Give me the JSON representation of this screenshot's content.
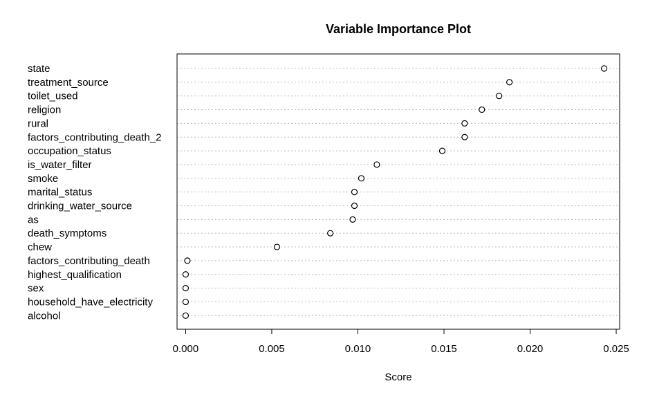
{
  "chart_data": {
    "type": "scatter",
    "title": "Variable Importance Plot",
    "xlabel": "Score",
    "ylabel": "",
    "xlim": [
      -0.0005,
      0.0252
    ],
    "xticks": [
      0.0,
      0.005,
      0.01,
      0.015,
      0.02,
      0.025
    ],
    "xtick_labels": [
      "0.000",
      "0.005",
      "0.010",
      "0.015",
      "0.020",
      "0.025"
    ],
    "grid": "dotted horizontal lines per row",
    "categories": [
      "state",
      "treatment_source",
      "toilet_used",
      "religion",
      "rural",
      "factors_contributing_death_2",
      "occupation_status",
      "is_water_filter",
      "smoke",
      "marital_status",
      "drinking_water_source",
      "as",
      "death_symptoms",
      "chew",
      "factors_contributing_death",
      "highest_qualification",
      "sex",
      "household_have_electricity",
      "alcohol"
    ],
    "values": [
      0.0243,
      0.0188,
      0.0182,
      0.0172,
      0.0162,
      0.0162,
      0.0149,
      0.0111,
      0.0102,
      0.0098,
      0.0098,
      0.0097,
      0.0084,
      0.0053,
      0.0001,
      0.0,
      0.0,
      0.0,
      0.0
    ],
    "marker": "open-circle",
    "colors": {
      "point": "#000000",
      "grid": "#bbbbbb",
      "axis": "#000000"
    }
  }
}
